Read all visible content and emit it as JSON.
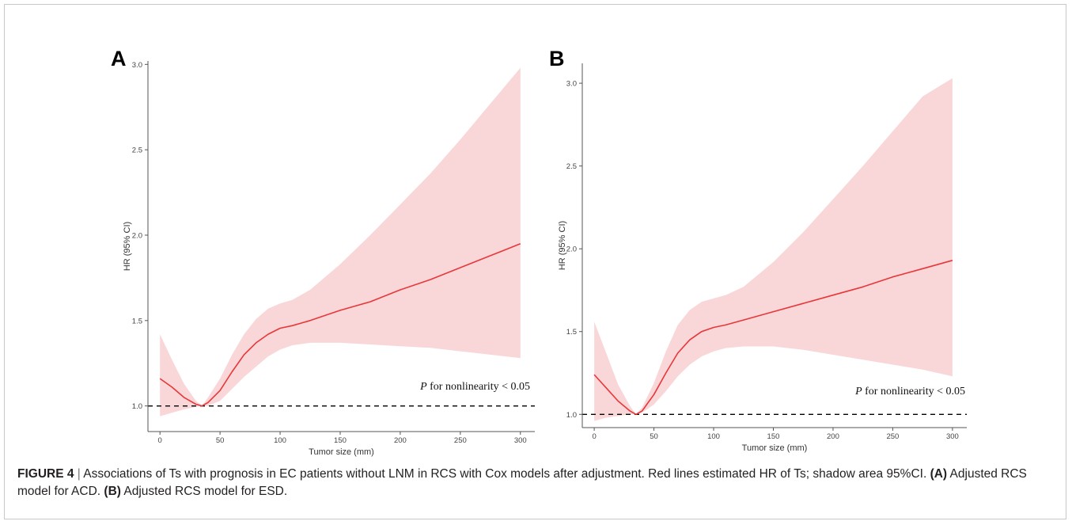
{
  "caption": {
    "label": "FIGURE 4",
    "separator": "|",
    "text_1": "Associations of Ts with prognosis in EC patients without LNM in RCS with Cox models after adjustment. Red lines estimated HR of Ts; shadow area 95%CI.",
    "panel_a_ref": "(A)",
    "text_2": "Adjusted RCS model for ACD.",
    "panel_b_ref": "(B)",
    "text_3": "Adjusted RCS model for ESD."
  },
  "chart_data": [
    {
      "type": "line",
      "panel": "A",
      "xlabel": "Tumor size (mm)",
      "ylabel": "HR (95% CI)",
      "xlim": [
        -10,
        312
      ],
      "ylim": [
        0.85,
        3.02
      ],
      "xticks": [
        0,
        50,
        100,
        150,
        200,
        250,
        300
      ],
      "yticks": [
        1.0,
        1.5,
        2.0,
        2.5,
        3.0
      ],
      "grid": false,
      "reference_line": 1.0,
      "annotation": {
        "italic": "P",
        "text": " for nonlinearity < 0.05"
      },
      "series": [
        {
          "x": [
            0,
            10,
            20,
            30,
            35,
            40,
            50,
            60,
            70,
            80,
            90,
            100,
            110,
            125,
            150,
            175,
            200,
            225,
            250,
            275,
            300
          ],
          "y": [
            1.16,
            1.11,
            1.05,
            1.01,
            1.0,
            1.02,
            1.09,
            1.2,
            1.3,
            1.37,
            1.42,
            1.455,
            1.47,
            1.5,
            1.56,
            1.61,
            1.68,
            1.74,
            1.81,
            1.88,
            1.95
          ],
          "lower": [
            0.94,
            0.96,
            0.98,
            0.995,
            1.0,
            1.0,
            1.03,
            1.1,
            1.17,
            1.23,
            1.29,
            1.33,
            1.355,
            1.37,
            1.37,
            1.36,
            1.35,
            1.34,
            1.32,
            1.3,
            1.28
          ],
          "upper": [
            1.42,
            1.27,
            1.13,
            1.03,
            1.0,
            1.05,
            1.16,
            1.3,
            1.42,
            1.51,
            1.57,
            1.6,
            1.62,
            1.68,
            1.83,
            2.0,
            2.18,
            2.36,
            2.56,
            2.77,
            2.98
          ]
        }
      ]
    },
    {
      "type": "line",
      "panel": "B",
      "xlabel": "Tumor size (mm)",
      "ylabel": "HR (95% CI)",
      "xlim": [
        -10,
        312
      ],
      "ylim": [
        0.92,
        3.12
      ],
      "xticks": [
        0,
        50,
        100,
        150,
        200,
        250,
        300
      ],
      "yticks": [
        1.0,
        1.5,
        2.0,
        2.5,
        3.0
      ],
      "grid": false,
      "reference_line": 1.0,
      "annotation": {
        "italic": "P",
        "text": " for nonlinearity < 0.05"
      },
      "series": [
        {
          "x": [
            0,
            10,
            20,
            30,
            35,
            40,
            50,
            60,
            70,
            80,
            90,
            100,
            110,
            125,
            150,
            175,
            200,
            225,
            250,
            275,
            300
          ],
          "y": [
            1.24,
            1.16,
            1.08,
            1.02,
            1.0,
            1.02,
            1.12,
            1.25,
            1.37,
            1.45,
            1.5,
            1.525,
            1.54,
            1.57,
            1.62,
            1.67,
            1.72,
            1.77,
            1.83,
            1.88,
            1.93
          ],
          "lower": [
            0.96,
            0.98,
            0.99,
            1.0,
            1.0,
            1.01,
            1.06,
            1.14,
            1.23,
            1.3,
            1.35,
            1.38,
            1.4,
            1.41,
            1.41,
            1.39,
            1.36,
            1.33,
            1.3,
            1.27,
            1.23
          ],
          "upper": [
            1.56,
            1.37,
            1.18,
            1.05,
            1.0,
            1.04,
            1.19,
            1.38,
            1.54,
            1.63,
            1.68,
            1.7,
            1.72,
            1.77,
            1.92,
            2.1,
            2.3,
            2.5,
            2.71,
            2.92,
            3.03
          ]
        }
      ]
    }
  ],
  "colors": {
    "line": "#e8373a",
    "band": "#f9d7d8",
    "reference": "#000000",
    "axis": "#555555"
  }
}
